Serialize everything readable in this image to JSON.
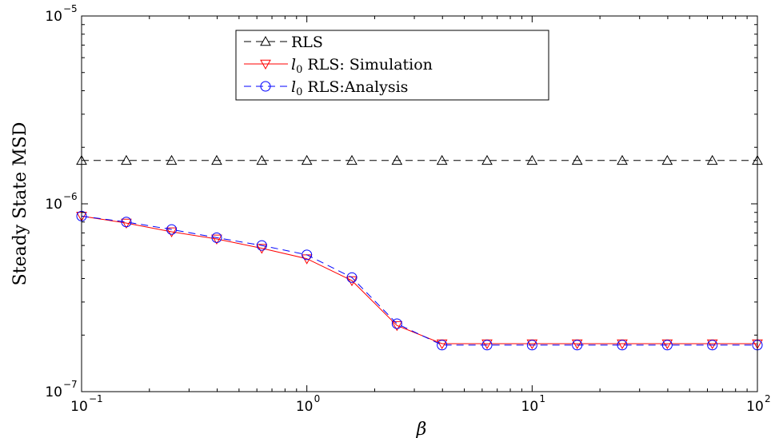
{
  "chart_data": {
    "type": "line",
    "xlabel": "β",
    "ylabel": "Steady State MSD",
    "xscale": "log",
    "yscale": "log",
    "xlim": [
      0.1,
      100
    ],
    "ylim": [
      1e-07,
      1e-05
    ],
    "x_ticks": [
      {
        "base": "10",
        "exp": "−1"
      },
      {
        "base": "10",
        "exp": "0"
      },
      {
        "base": "10",
        "exp": "1"
      },
      {
        "base": "10",
        "exp": "2"
      }
    ],
    "y_ticks": [
      {
        "base": "10",
        "exp": "−7"
      },
      {
        "base": "10",
        "exp": "−6"
      },
      {
        "base": "10",
        "exp": "−5"
      }
    ],
    "grid": false,
    "legend_position": "top-center",
    "x": [
      0.1,
      0.158,
      0.251,
      0.398,
      0.631,
      1.0,
      1.585,
      2.512,
      3.981,
      6.31,
      10,
      15.85,
      25.12,
      39.81,
      63.1,
      100
    ],
    "series": [
      {
        "name": "RLS",
        "name_prefix": "",
        "color": "#000000",
        "dash": "dashed",
        "marker": "triangle-up",
        "values": [
          1.7e-06,
          1.7e-06,
          1.7e-06,
          1.7e-06,
          1.7e-06,
          1.7e-06,
          1.7e-06,
          1.7e-06,
          1.7e-06,
          1.7e-06,
          1.7e-06,
          1.7e-06,
          1.7e-06,
          1.7e-06,
          1.7e-06,
          1.7e-06
        ]
      },
      {
        "name": " RLS: Simulation",
        "name_prefix": "l0",
        "color": "#ff0000",
        "dash": "solid",
        "marker": "triangle-down",
        "values": [
          8.6e-07,
          7.9e-07,
          7.1e-07,
          6.5e-07,
          5.8e-07,
          5.1e-07,
          3.9e-07,
          2.25e-07,
          1.8e-07,
          1.8e-07,
          1.8e-07,
          1.8e-07,
          1.8e-07,
          1.8e-07,
          1.8e-07,
          1.8e-07
        ]
      },
      {
        "name": " RLS:Analysis",
        "name_prefix": "l0",
        "color": "#0000ff",
        "dash": "dashed",
        "marker": "circle",
        "values": [
          8.6e-07,
          8e-07,
          7.3e-07,
          6.6e-07,
          6e-07,
          5.35e-07,
          4.05e-07,
          2.3e-07,
          1.77e-07,
          1.77e-07,
          1.77e-07,
          1.77e-07,
          1.77e-07,
          1.77e-07,
          1.77e-07,
          1.77e-07
        ]
      }
    ]
  }
}
